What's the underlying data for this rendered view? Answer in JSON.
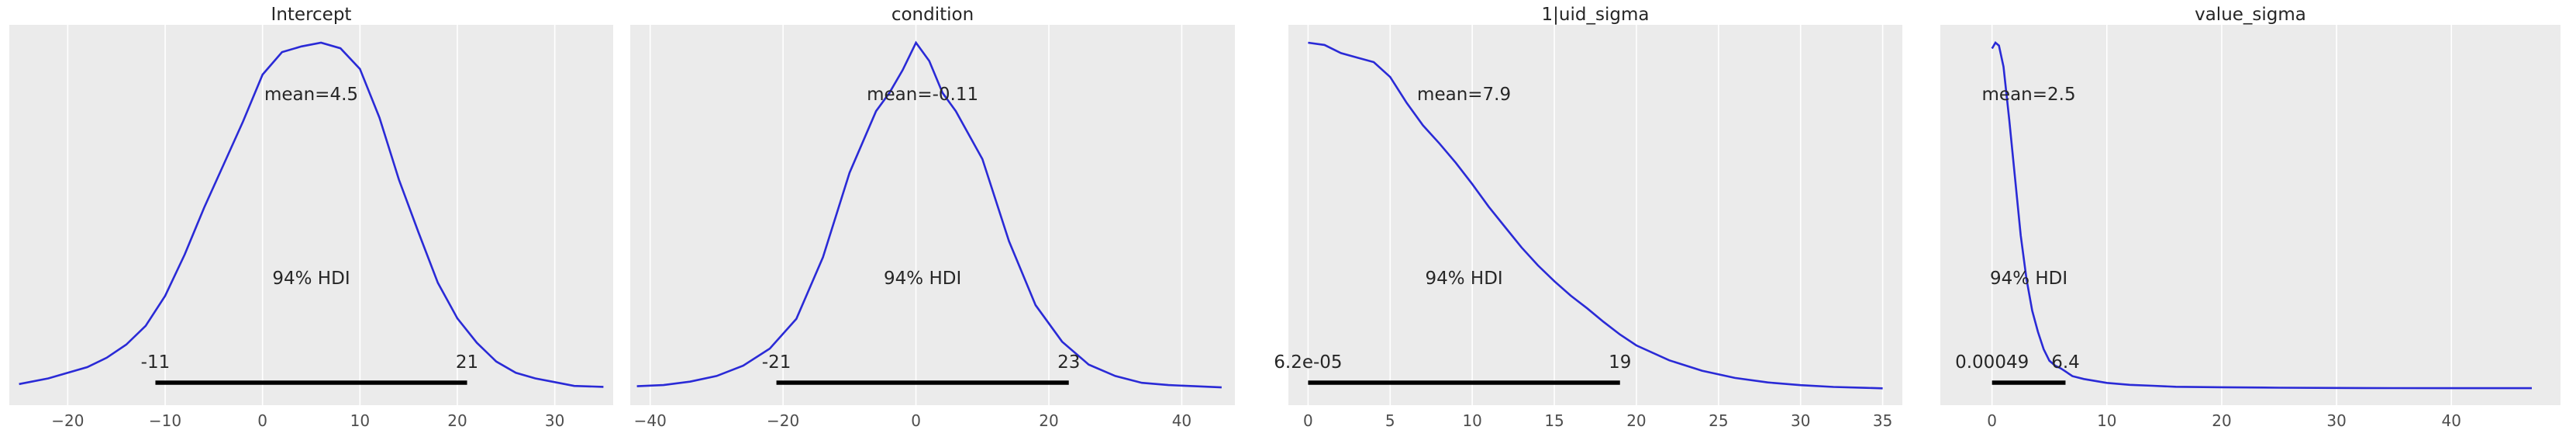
{
  "chart_data": [
    {
      "type": "line",
      "title": "Intercept",
      "xlim": [
        -26,
        36
      ],
      "xticks": [
        -20,
        -10,
        0,
        10,
        20,
        30
      ],
      "grid": true,
      "mean_label": "mean=4.5",
      "hdi_label": "94% HDI",
      "hdi": [
        -11,
        21
      ],
      "hdi_low_label": "-11",
      "hdi_high_label": "21",
      "x": [
        -25,
        -22,
        -20,
        -18,
        -16,
        -14,
        -12,
        -10,
        -8,
        -6,
        -4,
        -2,
        0,
        2,
        4,
        6,
        8,
        10,
        12,
        14,
        16,
        18,
        20,
        22,
        24,
        26,
        28,
        30,
        32,
        35
      ],
      "y": [
        0.003,
        0.006,
        0.009,
        0.012,
        0.017,
        0.024,
        0.034,
        0.05,
        0.072,
        0.097,
        0.12,
        0.143,
        0.168,
        0.18,
        0.183,
        0.185,
        0.182,
        0.171,
        0.145,
        0.112,
        0.084,
        0.057,
        0.038,
        0.025,
        0.015,
        0.009,
        0.006,
        0.004,
        0.002,
        0.0015
      ]
    },
    {
      "type": "line",
      "title": "condition",
      "xlim": [
        -43,
        48
      ],
      "xticks": [
        -40,
        -20,
        0,
        20,
        40
      ],
      "grid": true,
      "mean_label": "mean=-0.11",
      "hdi_label": "94% HDI",
      "hdi": [
        -21,
        23
      ],
      "hdi_low_label": "-21",
      "hdi_high_label": "23",
      "x": [
        -42,
        -38,
        -34,
        -30,
        -26,
        -22,
        -18,
        -14,
        -10,
        -6,
        -4,
        -2,
        0,
        2,
        4,
        6,
        10,
        14,
        18,
        22,
        26,
        30,
        34,
        38,
        42,
        46
      ],
      "y": [
        0.0015,
        0.002,
        0.0035,
        0.006,
        0.0105,
        0.018,
        0.031,
        0.058,
        0.095,
        0.122,
        0.13,
        0.14,
        0.152,
        0.144,
        0.13,
        0.122,
        0.101,
        0.065,
        0.037,
        0.021,
        0.011,
        0.006,
        0.003,
        0.002,
        0.0015,
        0.001
      ]
    },
    {
      "type": "line",
      "title": "1|uid_sigma",
      "xlim": [
        -1.2,
        36.2
      ],
      "xticks": [
        0,
        5,
        10,
        15,
        20,
        25,
        30,
        35
      ],
      "grid": true,
      "mean_label": "mean=7.9",
      "hdi_label": "94% HDI",
      "hdi": [
        6.2e-05,
        19
      ],
      "hdi_low_label": "6.2e-05",
      "hdi_high_label": "19",
      "x": [
        0,
        1,
        2,
        3,
        4,
        5,
        6,
        7,
        8,
        9,
        10,
        11,
        12,
        13,
        14,
        15,
        16,
        17,
        18,
        19,
        20,
        22,
        24,
        26,
        28,
        30,
        32,
        34,
        35
      ],
      "y": [
        0.0768,
        0.0763,
        0.0745,
        0.0735,
        0.0725,
        0.0692,
        0.0635,
        0.0585,
        0.0545,
        0.0502,
        0.0455,
        0.0405,
        0.036,
        0.0315,
        0.0275,
        0.024,
        0.0208,
        0.018,
        0.015,
        0.0122,
        0.0098,
        0.0065,
        0.0042,
        0.0026,
        0.0016,
        0.001,
        0.0006,
        0.0004,
        0.0003
      ]
    },
    {
      "type": "line",
      "title": "value_sigma",
      "xlim": [
        -4.5,
        49.5
      ],
      "xticks": [
        0,
        10,
        20,
        30,
        40
      ],
      "grid": true,
      "mean_label": "mean=2.5",
      "hdi_label": "94% HDI",
      "hdi": [
        0.00049,
        6.4
      ],
      "hdi_low_label": "0.00049",
      "hdi_high_label": "6.4",
      "x": [
        0,
        0.3,
        0.6,
        1,
        1.5,
        2,
        2.5,
        3,
        3.5,
        4,
        4.5,
        5,
        5.5,
        6,
        6.5,
        7,
        8,
        9,
        10,
        11,
        12,
        14,
        16,
        20,
        25,
        30,
        35,
        40,
        47
      ],
      "y": [
        0.354,
        0.36,
        0.357,
        0.335,
        0.28,
        0.22,
        0.16,
        0.115,
        0.082,
        0.06,
        0.042,
        0.03,
        0.025,
        0.022,
        0.018,
        0.014,
        0.011,
        0.009,
        0.007,
        0.006,
        0.005,
        0.004,
        0.003,
        0.0025,
        0.002,
        0.0018,
        0.0016,
        0.0015,
        0.0015
      ]
    }
  ]
}
